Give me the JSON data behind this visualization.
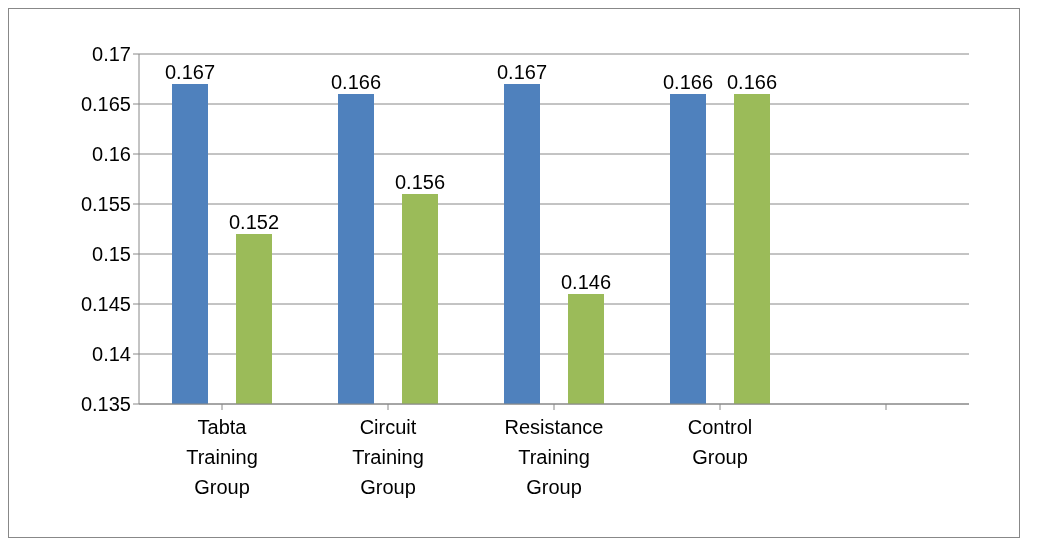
{
  "chart_data": {
    "type": "bar",
    "categories": [
      "Tabta Training Group",
      "Circuit Training Group",
      "Resistance Training Group",
      "Control Group",
      null
    ],
    "series": [
      {
        "color": "#4f81bd",
        "values": [
          0.167,
          0.166,
          0.167,
          0.166,
          null
        ]
      },
      {
        "color": "#9bbb59",
        "values": [
          0.152,
          0.156,
          0.146,
          0.166,
          null
        ]
      }
    ],
    "ylim": [
      0.135,
      0.17
    ],
    "yticks": [
      0.135,
      0.14,
      0.145,
      0.15,
      0.155,
      0.16,
      0.165,
      0.17
    ],
    "grid": "y",
    "data_labels": true,
    "legend": false
  }
}
